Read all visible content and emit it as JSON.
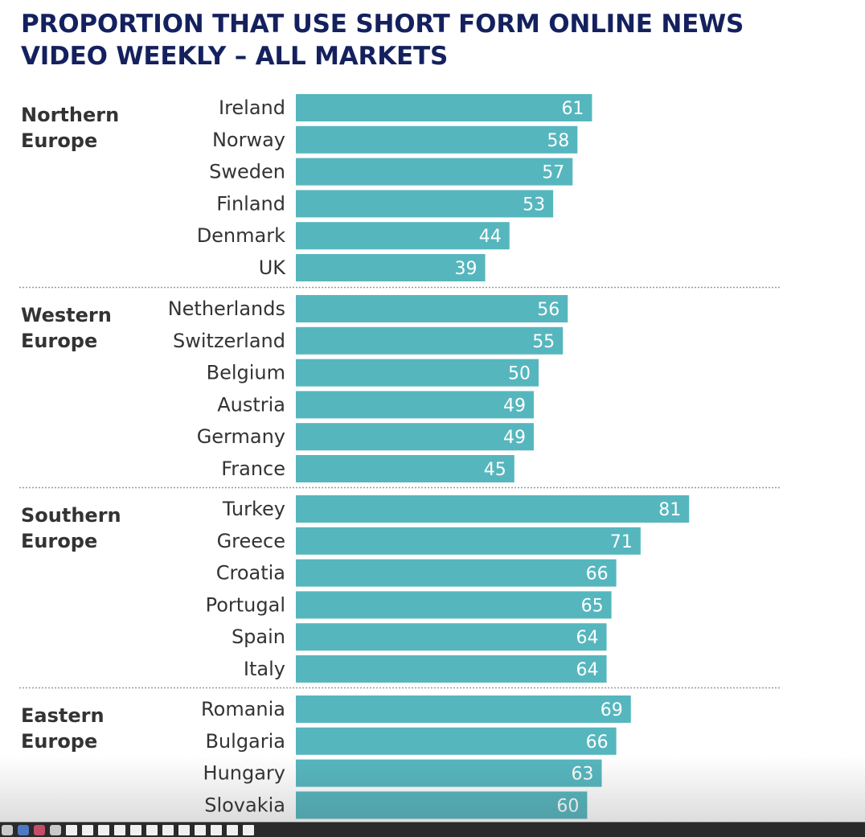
{
  "title_line1": "PROPORTION THAT USE SHORT FORM ONLINE NEWS",
  "title_line2": "VIDEO WEEKLY – ALL MARKETS",
  "colors": {
    "bar": "#56b6be",
    "title": "#14215e",
    "label": "#333333",
    "divider": "#9a9a9a"
  },
  "dock_icons": [
    "finder-icon",
    "browser-icon",
    "app-icon",
    "app-icon",
    "document-icon",
    "document-icon",
    "document-icon",
    "document-icon",
    "document-icon",
    "document-icon",
    "document-icon",
    "document-icon",
    "document-icon",
    "document-icon",
    "document-icon",
    "document-icon"
  ],
  "chart_data": {
    "type": "bar",
    "orientation": "horizontal",
    "title": "PROPORTION THAT USE SHORT FORM ONLINE NEWS VIDEO WEEKLY – ALL MARKETS",
    "xlim": [
      0,
      100
    ],
    "grid": false,
    "groups": [
      {
        "region": "Northern Europe",
        "categories": [
          "Ireland",
          "Norway",
          "Sweden",
          "Finland",
          "Denmark",
          "UK"
        ],
        "values": [
          61,
          58,
          57,
          53,
          44,
          39
        ]
      },
      {
        "region": "Western Europe",
        "categories": [
          "Netherlands",
          "Switzerland",
          "Belgium",
          "Austria",
          "Germany",
          "France"
        ],
        "values": [
          56,
          55,
          50,
          49,
          49,
          45
        ]
      },
      {
        "region": "Southern Europe",
        "categories": [
          "Turkey",
          "Greece",
          "Croatia",
          "Portugal",
          "Spain",
          "Italy"
        ],
        "values": [
          81,
          71,
          66,
          65,
          64,
          64
        ]
      },
      {
        "region": "Eastern Europe",
        "categories": [
          "Romania",
          "Bulgaria",
          "Hungary",
          "Slovakia"
        ],
        "values": [
          69,
          66,
          63,
          60
        ]
      }
    ]
  }
}
